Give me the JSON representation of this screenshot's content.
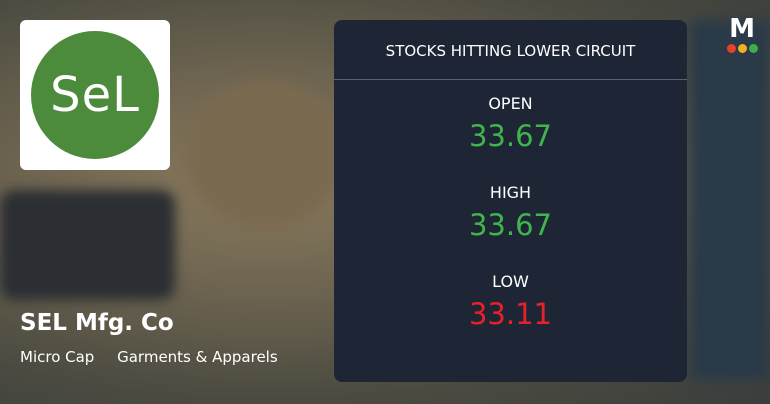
{
  "company": {
    "logo_text": "SeL",
    "name": "SEL Mfg. Co",
    "tags": [
      "Micro Cap",
      "Garments & Apparels"
    ]
  },
  "card": {
    "title": "STOCKS HITTING LOWER CIRCUIT",
    "rows": [
      {
        "label": "OPEN",
        "value": "33.67",
        "color": "#3fb54c"
      },
      {
        "label": "HIGH",
        "value": "33.67",
        "color": "#3fb54c"
      },
      {
        "label": "LOW",
        "value": "33.11",
        "color": "#e8202a"
      }
    ]
  },
  "brand": {
    "letter": "M"
  }
}
